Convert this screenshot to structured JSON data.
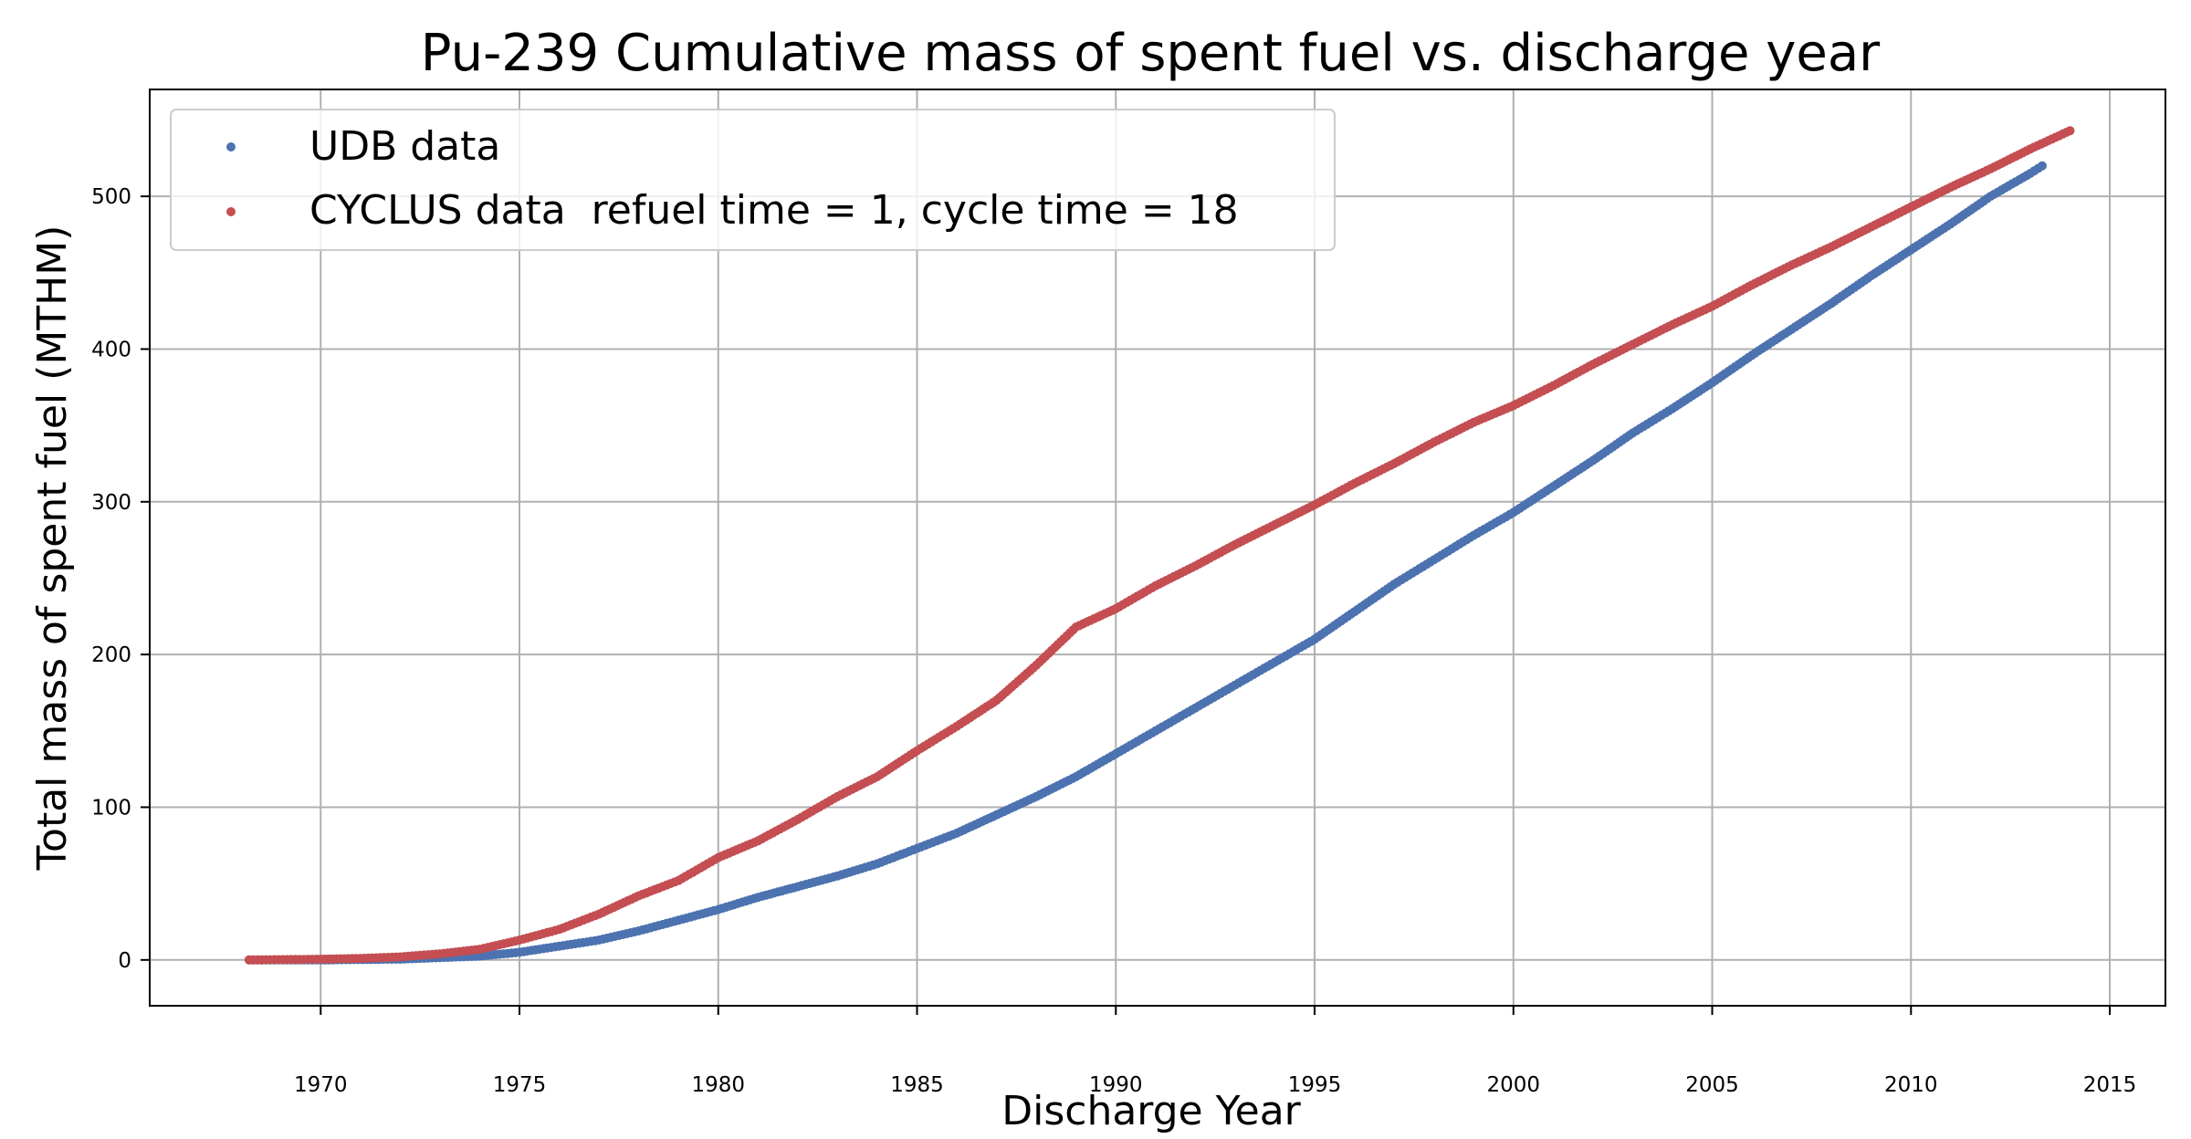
{
  "chart_data": {
    "type": "scatter",
    "title": "Pu-239 Cumulative mass of spent fuel vs. discharge year",
    "xlabel": "Discharge Year",
    "ylabel": "Total mass of spent fuel (MTHM)",
    "xlim": [
      1965.7,
      2016.4
    ],
    "ylim": [
      -30,
      570
    ],
    "x_ticks": [
      1970,
      1975,
      1980,
      1985,
      1990,
      1995,
      2000,
      2005,
      2010,
      2015
    ],
    "y_ticks": [
      0,
      100,
      200,
      300,
      400,
      500
    ],
    "grid": true,
    "legend_position": "top-left",
    "series": [
      {
        "name": "UDB data",
        "color": "#4c72b0",
        "points": [
          [
            1968.2,
            0
          ],
          [
            1970,
            0
          ],
          [
            1972,
            0.5
          ],
          [
            1973,
            1.5
          ],
          [
            1974,
            2.5
          ],
          [
            1975,
            5
          ],
          [
            1976,
            9
          ],
          [
            1977,
            13
          ],
          [
            1978,
            19
          ],
          [
            1979,
            26
          ],
          [
            1980,
            33
          ],
          [
            1981,
            41
          ],
          [
            1982,
            48
          ],
          [
            1983,
            55
          ],
          [
            1984,
            63
          ],
          [
            1985,
            73
          ],
          [
            1986,
            83
          ],
          [
            1987,
            95
          ],
          [
            1988,
            107
          ],
          [
            1989,
            120
          ],
          [
            1990,
            135
          ],
          [
            1991,
            150
          ],
          [
            1992,
            165
          ],
          [
            1993,
            180
          ],
          [
            1994,
            195
          ],
          [
            1995,
            210
          ],
          [
            1996,
            228
          ],
          [
            1997,
            246
          ],
          [
            1998,
            262
          ],
          [
            1999,
            278
          ],
          [
            2000,
            293
          ],
          [
            2001,
            310
          ],
          [
            2002,
            327
          ],
          [
            2003,
            345
          ],
          [
            2004,
            361
          ],
          [
            2005,
            378
          ],
          [
            2006,
            396
          ],
          [
            2007,
            413
          ],
          [
            2008,
            430
          ],
          [
            2009,
            448
          ],
          [
            2010,
            465
          ],
          [
            2011,
            482
          ],
          [
            2012,
            500
          ],
          [
            2013,
            515
          ],
          [
            2013.3,
            520
          ]
        ]
      },
      {
        "name": "CYCLUS data  refuel time = 1, cycle time = 18",
        "color": "#c44e52",
        "points": [
          [
            1968.2,
            0
          ],
          [
            1970,
            0.5
          ],
          [
            1971,
            1
          ],
          [
            1972,
            2
          ],
          [
            1973,
            4
          ],
          [
            1974,
            7
          ],
          [
            1975,
            13
          ],
          [
            1976,
            20
          ],
          [
            1977,
            30
          ],
          [
            1978,
            42
          ],
          [
            1979,
            52
          ],
          [
            1980,
            67
          ],
          [
            1981,
            78
          ],
          [
            1982,
            92
          ],
          [
            1983,
            107
          ],
          [
            1984,
            120
          ],
          [
            1985,
            137
          ],
          [
            1986,
            153
          ],
          [
            1987,
            170
          ],
          [
            1988,
            193
          ],
          [
            1989,
            218
          ],
          [
            1990,
            230
          ],
          [
            1991,
            245
          ],
          [
            1992,
            258
          ],
          [
            1993,
            272
          ],
          [
            1994,
            285
          ],
          [
            1995,
            298
          ],
          [
            1996,
            312
          ],
          [
            1997,
            325
          ],
          [
            1998,
            339
          ],
          [
            1999,
            352
          ],
          [
            2000,
            363
          ],
          [
            2001,
            376
          ],
          [
            2002,
            390
          ],
          [
            2003,
            403
          ],
          [
            2004,
            416
          ],
          [
            2005,
            428
          ],
          [
            2006,
            442
          ],
          [
            2007,
            455
          ],
          [
            2008,
            467
          ],
          [
            2009,
            480
          ],
          [
            2010,
            493
          ],
          [
            2011,
            506
          ],
          [
            2012,
            518
          ],
          [
            2013,
            531
          ],
          [
            2014,
            543
          ]
        ]
      }
    ]
  }
}
